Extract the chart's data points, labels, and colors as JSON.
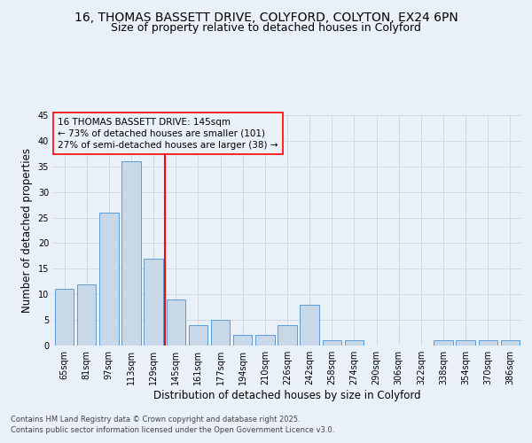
{
  "title_line1": "16, THOMAS BASSETT DRIVE, COLYFORD, COLYTON, EX24 6PN",
  "title_line2": "Size of property relative to detached houses in Colyford",
  "xlabel": "Distribution of detached houses by size in Colyford",
  "ylabel": "Number of detached properties",
  "categories": [
    "65sqm",
    "81sqm",
    "97sqm",
    "113sqm",
    "129sqm",
    "145sqm",
    "161sqm",
    "177sqm",
    "194sqm",
    "210sqm",
    "226sqm",
    "242sqm",
    "258sqm",
    "274sqm",
    "290sqm",
    "306sqm",
    "322sqm",
    "338sqm",
    "354sqm",
    "370sqm",
    "386sqm"
  ],
  "values": [
    11,
    12,
    26,
    36,
    17,
    9,
    4,
    5,
    2,
    2,
    4,
    8,
    1,
    1,
    0,
    0,
    0,
    1,
    1,
    1,
    1
  ],
  "bar_color": "#c8d8e8",
  "bar_edge_color": "#5b9bd5",
  "grid_color": "#d0d8e8",
  "background_color": "#eaf0f8",
  "annotation_box_text": "16 THOMAS BASSETT DRIVE: 145sqm\n← 73% of detached houses are smaller (101)\n27% of semi-detached houses are larger (38) →",
  "vline_x_index": 5,
  "ylim": [
    0,
    45
  ],
  "yticks": [
    0,
    5,
    10,
    15,
    20,
    25,
    30,
    35,
    40,
    45
  ],
  "footnote": "Contains HM Land Registry data © Crown copyright and database right 2025.\nContains public sector information licensed under the Open Government Licence v3.0.",
  "title_fontsize": 10,
  "subtitle_fontsize": 9,
  "axis_label_fontsize": 8.5,
  "tick_fontsize": 7,
  "annot_fontsize": 7.5,
  "footnote_fontsize": 6
}
